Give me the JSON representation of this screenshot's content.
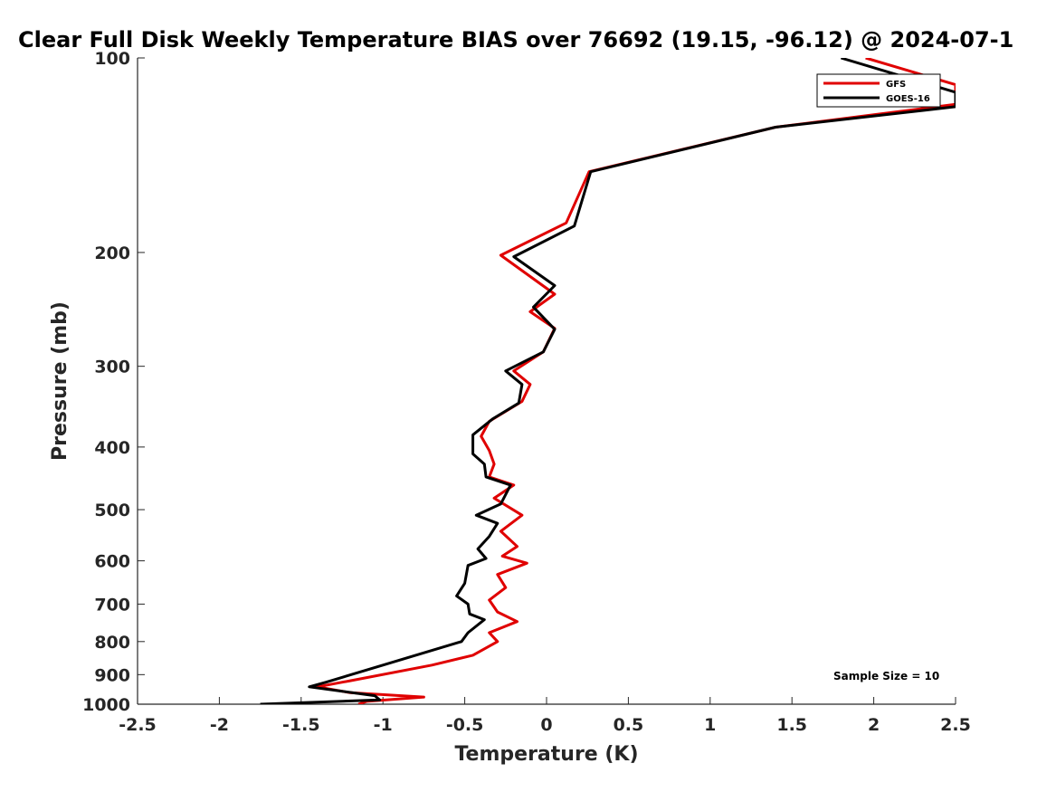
{
  "chart_data": {
    "type": "line",
    "title": "Clear Full Disk Weekly Temperature BIAS over 76692 (19.15, -96.12) @ 2024-07-1",
    "xlabel": "Temperature (K)",
    "ylabel": "Pressure (mb)",
    "xlim": [
      -2.5,
      2.5
    ],
    "ylim": [
      100,
      1000
    ],
    "yscale": "log",
    "y_reversed": true,
    "xticks": [
      -2.5,
      -2,
      -1.5,
      -1,
      -0.5,
      0,
      0.5,
      1,
      1.5,
      2,
      2.5
    ],
    "xtick_labels": [
      "-2.5",
      "-2",
      "-1.5",
      "-1",
      "-0.5",
      "0",
      "0.5",
      "1",
      "1.5",
      "2",
      "2.5"
    ],
    "yticks": [
      100,
      200,
      300,
      400,
      500,
      600,
      700,
      800,
      900,
      1000
    ],
    "ytick_labels": [
      "100",
      "200",
      "300",
      "400",
      "500",
      "600",
      "700",
      "800",
      "900",
      "1000"
    ],
    "legend_position": "top-right",
    "annotation": "Sample Size = 10",
    "series": [
      {
        "name": "GFS",
        "color": "#e00000",
        "points": [
          [
            1.95,
            100
          ],
          [
            2.5,
            110
          ],
          [
            2.5,
            118
          ],
          [
            1.4,
            128
          ],
          [
            0.26,
            150
          ],
          [
            0.12,
            180
          ],
          [
            -0.28,
            202
          ],
          [
            0.05,
            232
          ],
          [
            -0.1,
            247
          ],
          [
            0.05,
            262
          ],
          [
            -0.02,
            285
          ],
          [
            -0.2,
            305
          ],
          [
            -0.1,
            320
          ],
          [
            -0.15,
            340
          ],
          [
            -0.35,
            365
          ],
          [
            -0.4,
            385
          ],
          [
            -0.35,
            405
          ],
          [
            -0.32,
            425
          ],
          [
            -0.35,
            445
          ],
          [
            -0.2,
            458
          ],
          [
            -0.32,
            480
          ],
          [
            -0.15,
            510
          ],
          [
            -0.28,
            540
          ],
          [
            -0.18,
            570
          ],
          [
            -0.27,
            590
          ],
          [
            -0.12,
            605
          ],
          [
            -0.3,
            630
          ],
          [
            -0.25,
            660
          ],
          [
            -0.35,
            690
          ],
          [
            -0.3,
            720
          ],
          [
            -0.18,
            745
          ],
          [
            -0.35,
            775
          ],
          [
            -0.3,
            800
          ],
          [
            -0.45,
            840
          ],
          [
            -0.7,
            870
          ],
          [
            -1.2,
            920
          ],
          [
            -1.4,
            940
          ],
          [
            -1.2,
            960
          ],
          [
            -0.75,
            975
          ],
          [
            -1.1,
            990
          ],
          [
            -1.15,
            1000
          ]
        ]
      },
      {
        "name": "GOES-16",
        "color": "#000000",
        "points": [
          [
            1.8,
            100
          ],
          [
            2.5,
            113
          ],
          [
            2.5,
            119
          ],
          [
            1.4,
            128
          ],
          [
            0.27,
            150
          ],
          [
            0.17,
            182
          ],
          [
            -0.2,
            203
          ],
          [
            0.05,
            225
          ],
          [
            -0.08,
            243
          ],
          [
            0.05,
            263
          ],
          [
            -0.02,
            285
          ],
          [
            -0.25,
            305
          ],
          [
            -0.15,
            320
          ],
          [
            -0.17,
            342
          ],
          [
            -0.33,
            362
          ],
          [
            -0.45,
            383
          ],
          [
            -0.45,
            410
          ],
          [
            -0.38,
            425
          ],
          [
            -0.37,
            445
          ],
          [
            -0.22,
            458
          ],
          [
            -0.28,
            490
          ],
          [
            -0.43,
            510
          ],
          [
            -0.3,
            525
          ],
          [
            -0.35,
            550
          ],
          [
            -0.42,
            575
          ],
          [
            -0.37,
            595
          ],
          [
            -0.48,
            610
          ],
          [
            -0.5,
            650
          ],
          [
            -0.55,
            680
          ],
          [
            -0.48,
            700
          ],
          [
            -0.47,
            725
          ],
          [
            -0.38,
            740
          ],
          [
            -0.48,
            775
          ],
          [
            -0.52,
            800
          ],
          [
            -0.8,
            840
          ],
          [
            -1.0,
            870
          ],
          [
            -1.35,
            925
          ],
          [
            -1.45,
            940
          ],
          [
            -1.05,
            970
          ],
          [
            -1.02,
            985
          ],
          [
            -1.75,
            1000
          ]
        ]
      }
    ]
  }
}
